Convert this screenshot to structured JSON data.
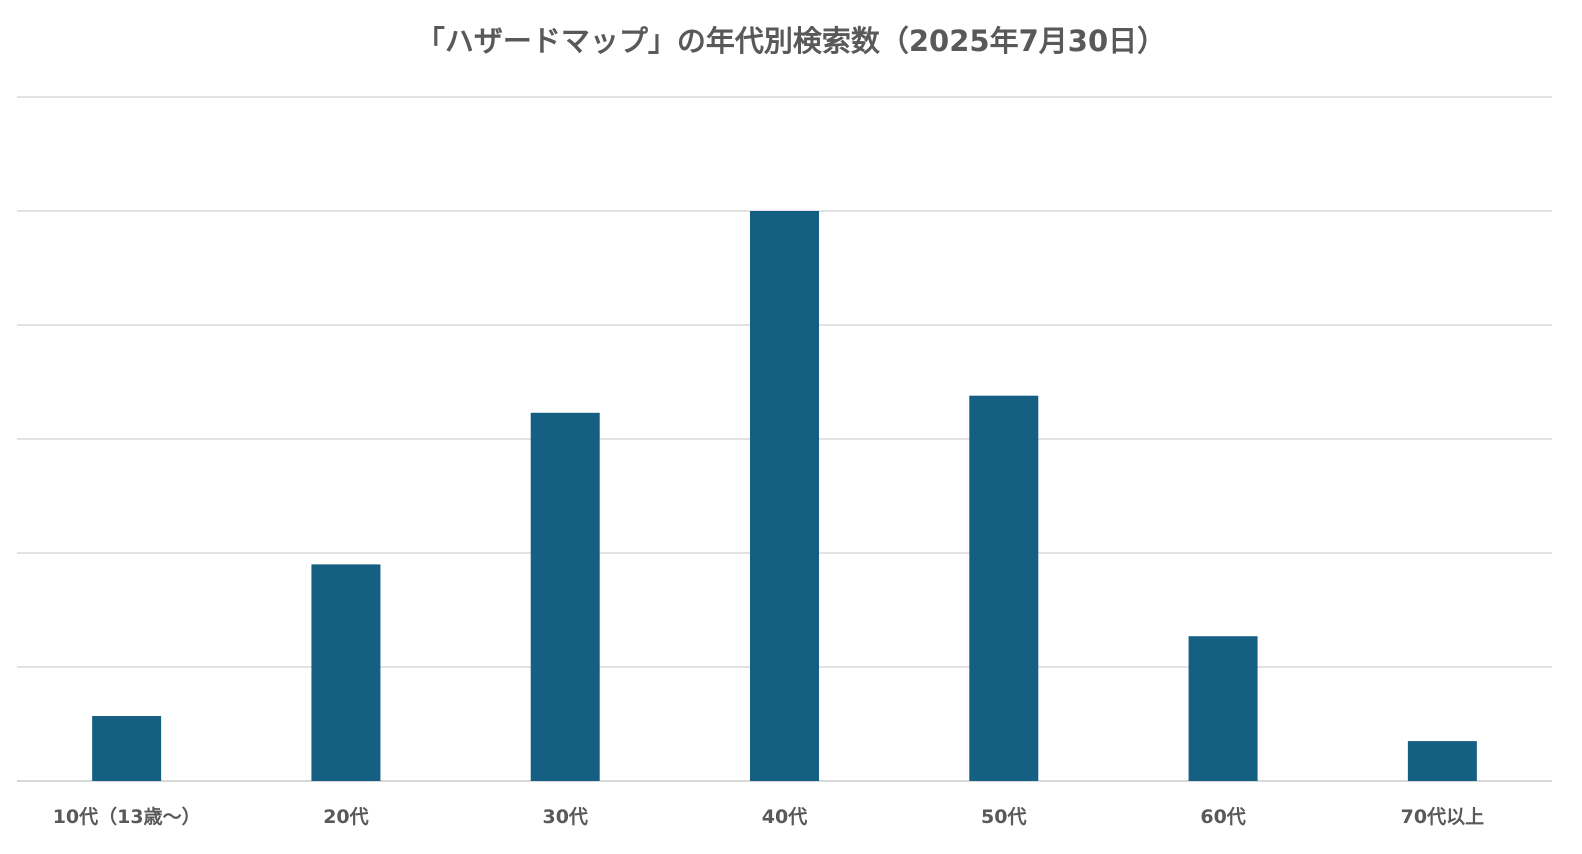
{
  "chart_data": {
    "type": "bar",
    "title": "「ハザードマップ」の年代別検索数（2025年7月30日）",
    "categories": [
      "10代（13歳～）",
      "20代",
      "30代",
      "40代",
      "50代",
      "60代",
      "70代以上"
    ],
    "values": [
      0.57,
      1.9,
      3.23,
      5.0,
      3.38,
      1.27,
      0.35
    ],
    "ylim": [
      0,
      6
    ],
    "gridlines": [
      0,
      1,
      2,
      3,
      4,
      5,
      6
    ],
    "grid": true,
    "legend": "none",
    "colors": {
      "bar": "#155f82",
      "grid": "#d9d9d9",
      "text": "#595959"
    }
  }
}
